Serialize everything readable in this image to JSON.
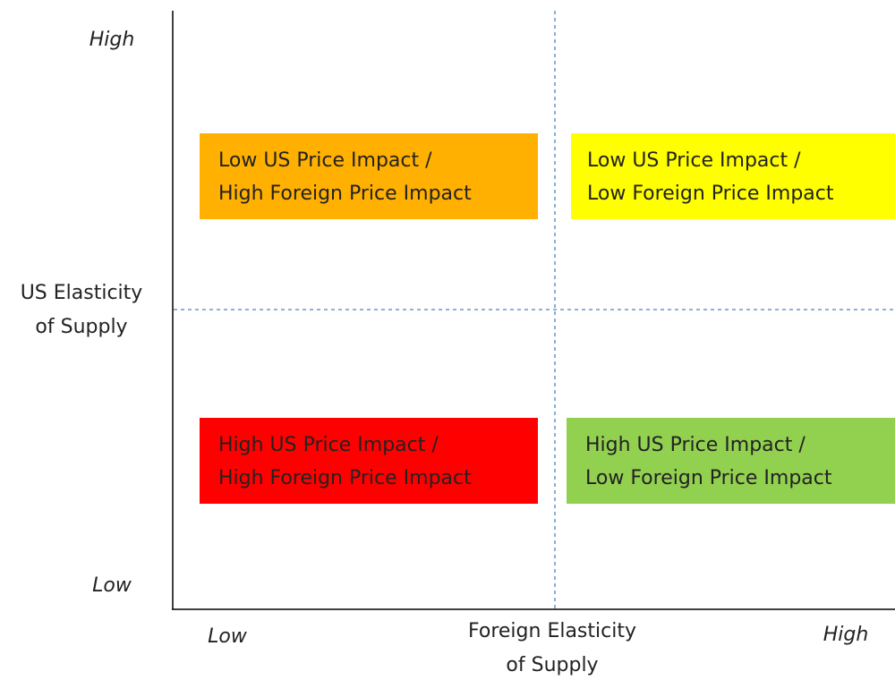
{
  "y_axis": {
    "label_lines": [
      "US Elasticity",
      "of Supply"
    ],
    "high": "High",
    "low": "Low"
  },
  "x_axis": {
    "label_lines": [
      "Foreign Elasticity",
      "of Supply"
    ],
    "low": "Low",
    "high": "High"
  },
  "quadrants": [
    {
      "lines": [
        "Low US Price Impact /",
        "High Foreign Price Impact"
      ]
    },
    {
      "lines": [
        "Low US Price Impact /",
        "Low Foreign Price Impact"
      ]
    },
    {
      "lines": [
        "High US Price Impact /",
        "High Foreign Price Impact"
      ]
    },
    {
      "lines": [
        "High US Price Impact /",
        "Low Foreign Price Impact"
      ]
    }
  ]
}
